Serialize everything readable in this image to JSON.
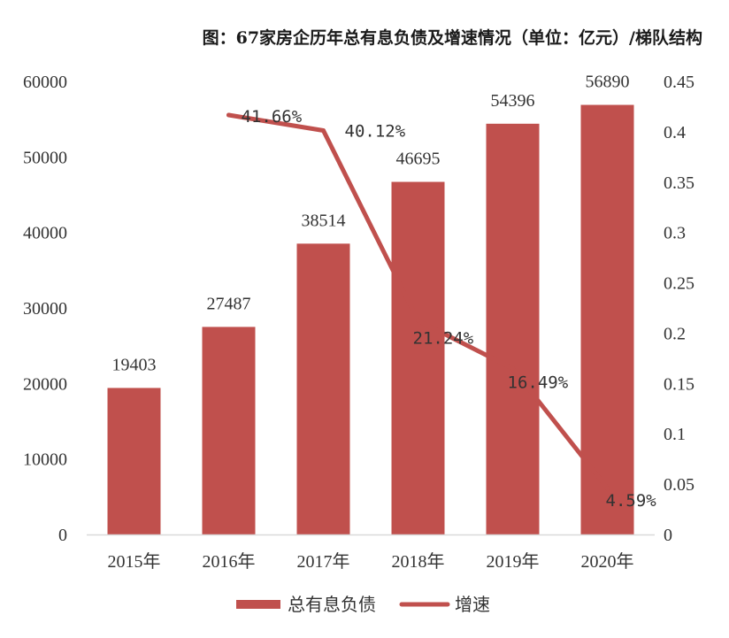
{
  "title": "图：67家房企历年总有息负债及增速情况（单位：亿元）/梯队结构",
  "colors": {
    "bar": "#C0504D",
    "line": "#C0504D",
    "axis": "#D9D9D9",
    "text": "#333333"
  },
  "chart_data": {
    "type": "bar",
    "title": "图：67家房企历年总有息负债及增速情况（单位：亿元）/梯队结构",
    "categories": [
      "2015年",
      "2016年",
      "2017年",
      "2018年",
      "2019年",
      "2020年"
    ],
    "series": [
      {
        "name": "总有息负债",
        "type": "bar",
        "axis": "left",
        "values": [
          19403,
          27487,
          38514,
          46695,
          54396,
          56890
        ],
        "labels": [
          "19403",
          "27487",
          "38514",
          "46695",
          "54396",
          "56890"
        ]
      },
      {
        "name": "增速",
        "type": "line",
        "axis": "right",
        "x": [
          "2016年",
          "2017年",
          "2018年",
          "2019年",
          "2020年"
        ],
        "values": [
          0.4166,
          0.4012,
          0.2124,
          0.1649,
          0.0459
        ],
        "labels": [
          "41.66%",
          "40.12%",
          "21.24%",
          "16.49%",
          "4.59%"
        ]
      }
    ],
    "y_left": {
      "ylim": [
        0,
        60000
      ],
      "ticks": [
        "0",
        "10000",
        "20000",
        "30000",
        "40000",
        "50000",
        "60000"
      ]
    },
    "y_right": {
      "ylim": [
        0,
        0.45
      ],
      "ticks": [
        "0",
        "0.05",
        "0.1",
        "0.15",
        "0.2",
        "0.25",
        "0.3",
        "0.35",
        "0.4",
        "0.45"
      ]
    },
    "grid": false,
    "legend": {
      "position": "bottom",
      "entries": [
        "总有息负债",
        "增速"
      ]
    }
  }
}
